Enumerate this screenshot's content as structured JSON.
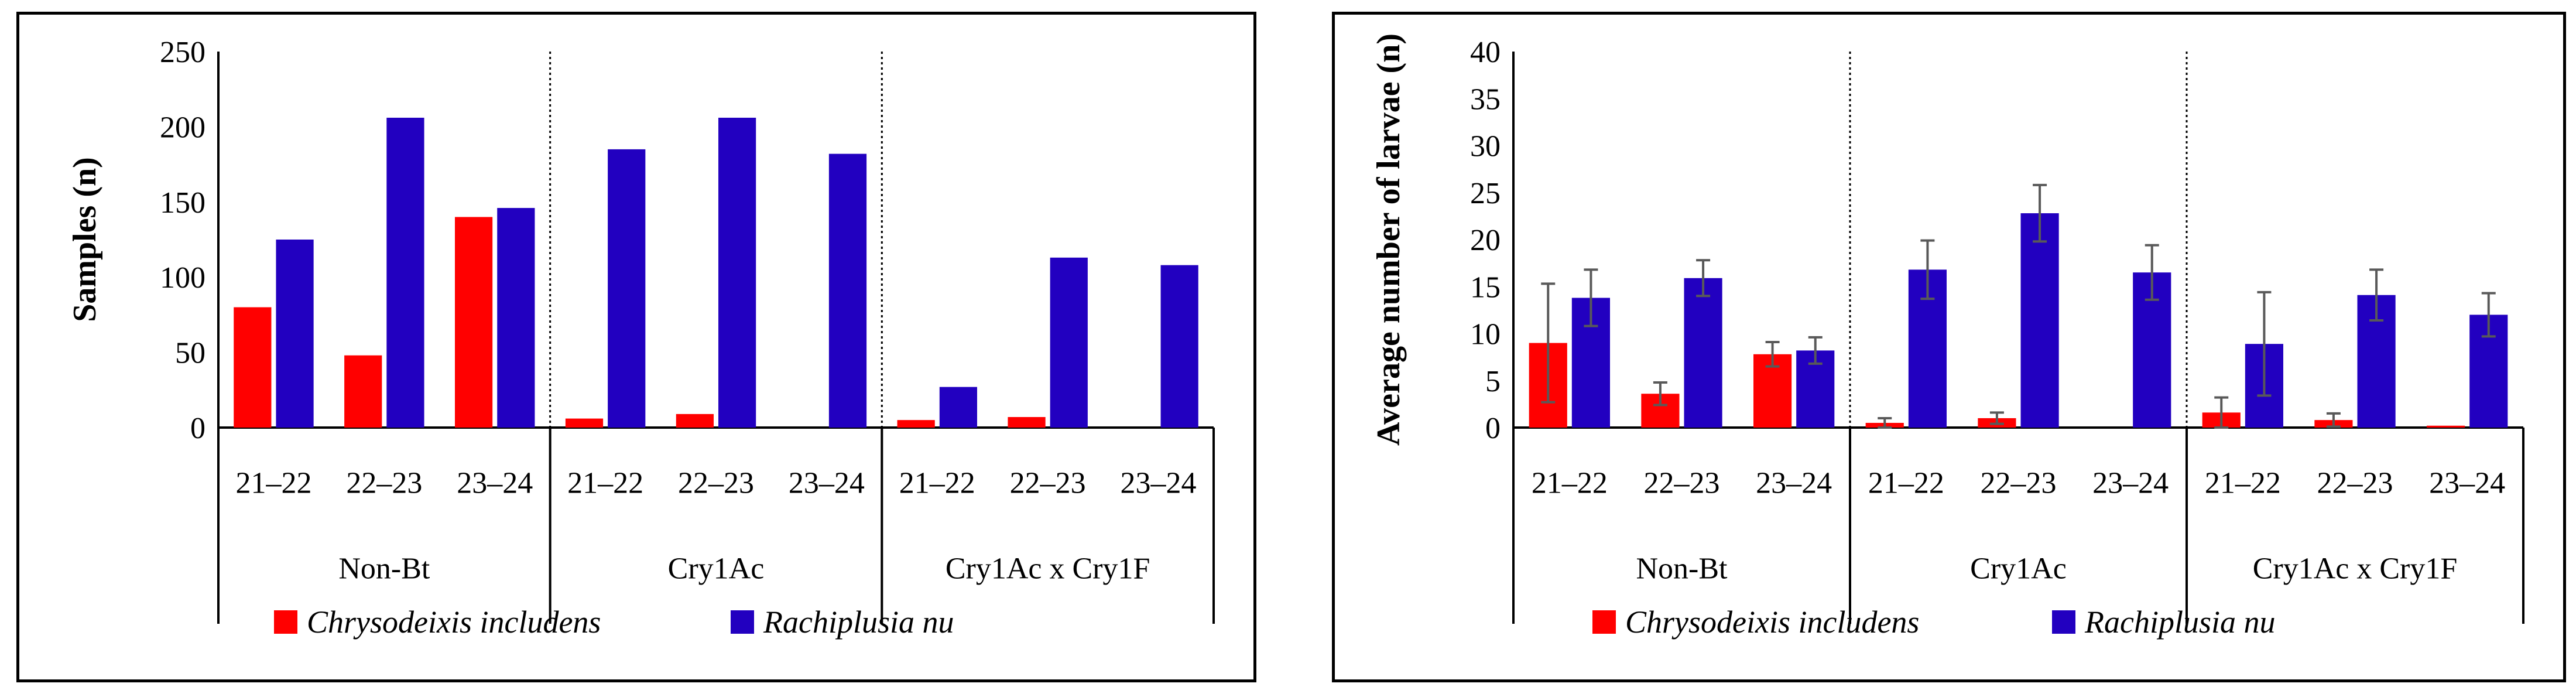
{
  "colors": {
    "chrysodeixis": "#ff0000",
    "rachiplusia": "#2200c0",
    "axis": "#000000",
    "errorbar": "#595959"
  },
  "chart_data": [
    {
      "type": "bar",
      "ylabel": "Samples (n)",
      "ylim": [
        0,
        250
      ],
      "yticks": [
        "0",
        "50",
        "100",
        "150",
        "200",
        "250"
      ],
      "groups": [
        "Non-Bt",
        "Cry1Ac",
        "Cry1Ac x Cry1F"
      ],
      "seasons": [
        "21–22",
        "22–23",
        "23–24"
      ],
      "series": [
        {
          "name": "Chrysodeixis includens",
          "values": [
            [
              80,
              48,
              140
            ],
            [
              6,
              9,
              0
            ],
            [
              5,
              7,
              0
            ]
          ]
        },
        {
          "name": "Rachiplusia nu",
          "values": [
            [
              125,
              206,
              146
            ],
            [
              185,
              206,
              182
            ],
            [
              27,
              113,
              108
            ]
          ]
        }
      ]
    },
    {
      "type": "bar",
      "ylabel": "Average number of larvae (n)",
      "ylim": [
        0,
        40
      ],
      "yticks": [
        "0",
        "5",
        "10",
        "15",
        "20",
        "25",
        "30",
        "35",
        "40"
      ],
      "groups": [
        "Non-Bt",
        "Cry1Ac",
        "Cry1Ac x Cry1F"
      ],
      "seasons": [
        "21–22",
        "22–23",
        "23–24"
      ],
      "series": [
        {
          "name": "Chrysodeixis includens",
          "values": [
            [
              9,
              3.6,
              7.8
            ],
            [
              0.5,
              1,
              0
            ],
            [
              1.6,
              0.8,
              0.2
            ]
          ],
          "errors": [
            [
              6.3,
              1.2,
              1.3
            ],
            [
              0.5,
              0.6,
              0
            ],
            [
              1.6,
              0.7,
              0
            ]
          ]
        },
        {
          "name": "Rachiplusia nu",
          "values": [
            [
              13.8,
              15.9,
              8.2
            ],
            [
              16.8,
              22.8,
              16.5
            ],
            [
              8.9,
              14.1,
              12
            ]
          ],
          "errors": [
            [
              3,
              1.9,
              1.4
            ],
            [
              3.1,
              3,
              2.9
            ],
            [
              5.5,
              2.7,
              2.3
            ]
          ]
        }
      ]
    }
  ]
}
